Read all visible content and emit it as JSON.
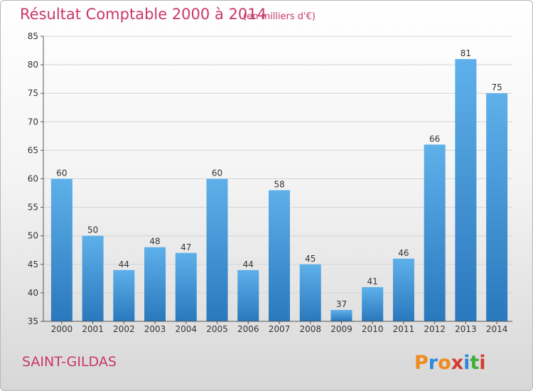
{
  "chart_data": {
    "type": "bar",
    "title": "Résultat Comptable 2000 à 2014",
    "subtitle": "(en milliers d'€)",
    "categories": [
      "2000",
      "2001",
      "2002",
      "2003",
      "2004",
      "2005",
      "2006",
      "2007",
      "2008",
      "2009",
      "2010",
      "2011",
      "2012",
      "2013",
      "2014"
    ],
    "values": [
      60,
      50,
      44,
      48,
      47,
      60,
      44,
      58,
      45,
      37,
      41,
      46,
      66,
      81,
      75
    ],
    "yticks": [
      35,
      40,
      45,
      50,
      55,
      60,
      65,
      70,
      75,
      80,
      85
    ],
    "ylim": [
      35,
      85
    ],
    "grid": true,
    "bar_color": "#3f8fd2"
  },
  "footer": {
    "commune": "SAINT-GILDAS"
  },
  "logo": {
    "letters": [
      "P",
      "r",
      "o",
      "x",
      "i",
      "t",
      "i"
    ],
    "colors": [
      "#f08a1d",
      "#2e8ad8",
      "#f08a1d",
      "#d63b2f",
      "#2e8ad8",
      "#3fae3a",
      "#d63b2f"
    ]
  }
}
